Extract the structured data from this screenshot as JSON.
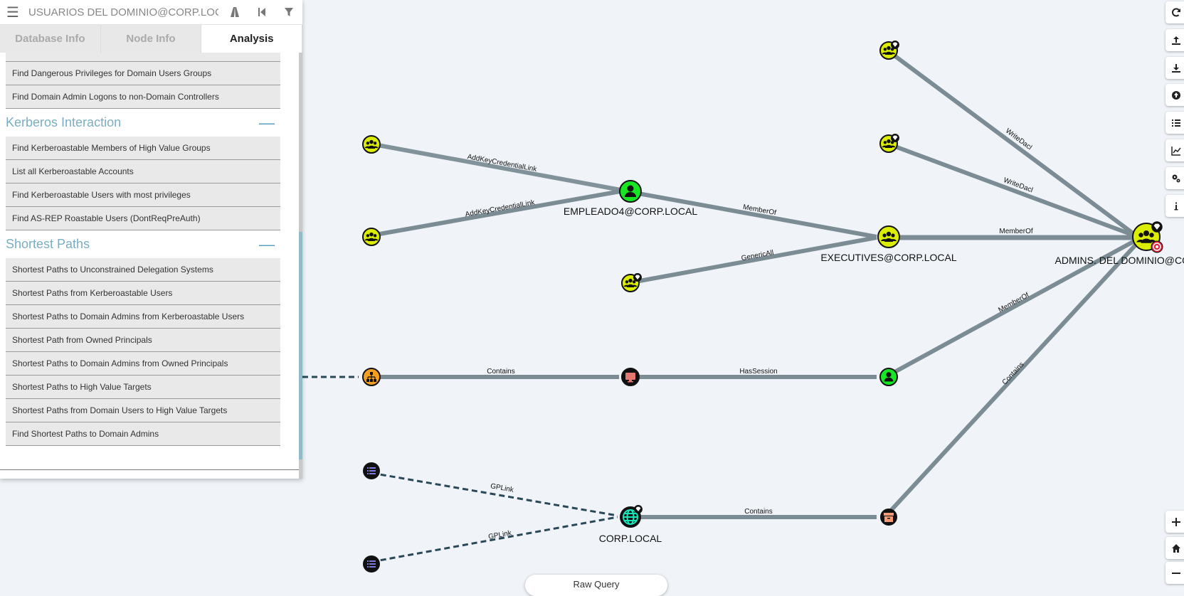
{
  "search": {
    "value": "USUARIOS DEL DOMINIO@CORP.LOCAL"
  },
  "tabs": [
    "Database Info",
    "Node Info",
    "Analysis"
  ],
  "analysis": {
    "top_items": [
      "Find Dangerous Privileges for Domain Users Groups",
      "Find Domain Admin Logons to non-Domain Controllers"
    ],
    "kerberos": {
      "title": "Kerberos Interaction",
      "items": [
        "Find Kerberoastable Members of High Value Groups",
        "List all Kerberoastable Accounts",
        "Find Kerberoastable Users with most privileges",
        "Find AS-REP Roastable Users (DontReqPreAuth)"
      ]
    },
    "shortest": {
      "title": "Shortest Paths",
      "items": [
        "Shortest Paths to Unconstrained Delegation Systems",
        "Shortest Paths from Kerberoastable Users",
        "Shortest Paths to Domain Admins from Kerberoastable Users",
        "Shortest Path from Owned Principals",
        "Shortest Paths to Domain Admins from Owned Principals",
        "Shortest Paths to High Value Targets",
        "Shortest Paths from Domain Users to High Value Targets",
        "Find Shortest Paths to Domain Admins"
      ]
    }
  },
  "graph": {
    "node_labels": {
      "empleado4": "EMPLEADO4@CORP.LOCAL",
      "executives": "EXECUTIVES@CORP.LOCAL",
      "admins": "ADMINS. DEL DOMINIO@CORP.LOCAL",
      "corp": "CORP.LOCAL"
    },
    "edge_labels": {
      "g1_to_emp": "AddKeyCredentialLink",
      "g2_to_emp": "AddKeyCredentialLink",
      "emp_to_exec": "MemberOf",
      "g3_to_exec": "GenericAll",
      "gt1_to_admins": "WriteDacl",
      "gt2_to_admins": "WriteDacl",
      "exec_to_admins": "MemberOf",
      "user_to_admins": "MemberOf",
      "ou_to_computer": "Contains",
      "computer_to_user": "HasSession",
      "gpo1_to_corp": "GPLink",
      "gpo2_to_corp": "GPLink",
      "corp_to_container": "Contains",
      "container_to_admins": "Contains"
    },
    "colors": {
      "group": "#dbee00",
      "user": "#17e625",
      "computer": "#e67873",
      "domain": "#17e6b9",
      "ou": "#f59f21",
      "gpo": "#7c79e3",
      "container": "#f79a78",
      "edge": "#7b8c95",
      "dashed_edge": "#2a4858",
      "target_badge": "#e22138"
    }
  },
  "raw_query": {
    "label": "Raw Query"
  }
}
